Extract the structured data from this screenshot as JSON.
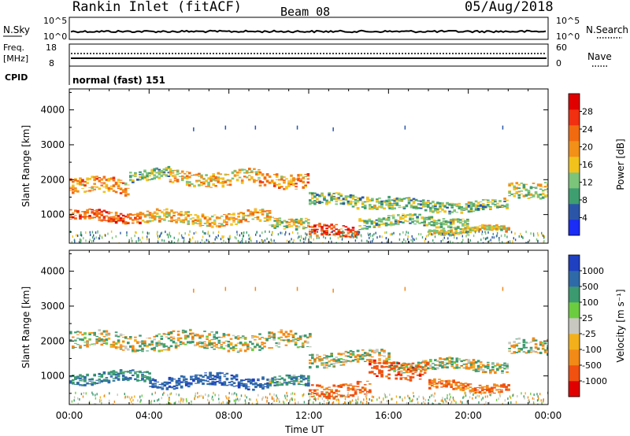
{
  "header": {
    "station": "Rankin Inlet (fitACF)",
    "beam": "Beam 08",
    "date": "05/Aug/2018"
  },
  "summary": {
    "nsky_label": "N.Sky",
    "nsky_ticks": [
      "10^5",
      "10^0"
    ],
    "nsearch_label": "N.Search",
    "nsearch_ticks": [
      "10^5",
      "10^0"
    ],
    "freq_label_1": "Freq.",
    "freq_label_2": "[MHz]",
    "freq_ticks": [
      "18",
      "8"
    ],
    "nave_label": "Nave",
    "nave_ticks": [
      "60",
      "0"
    ],
    "cpid_label": "CPID",
    "cpid_text": "normal (fast) 151"
  },
  "colors": {
    "power_scale": [
      "#1a2cf5",
      "#2b56a8",
      "#3f9e70",
      "#7cc47a",
      "#f2c21c",
      "#f29018",
      "#f26a10",
      "#f03010",
      "#e00000"
    ],
    "velocity_scale": [
      "#1f40c0",
      "#2f6aa8",
      "#3b9a70",
      "#6ccc40",
      "#c8c8c0",
      "#f4b01a",
      "#f28a18",
      "#f05010",
      "#e00000"
    ]
  },
  "chart_data": [
    {
      "type": "heatmap",
      "name": "power-panel",
      "ylabel": "Slant Range [km]",
      "yticks": [
        "4000",
        "3000",
        "2000",
        "1000"
      ],
      "ylim": [
        180,
        4600
      ],
      "xlim_hours": [
        0,
        24
      ],
      "colorbar_label": "Power [dB]",
      "colorbar_ticks": [
        "28",
        "24",
        "20",
        "16",
        "12",
        "8",
        "4"
      ],
      "colorbar_range": [
        0,
        32
      ],
      "bands": [
        {
          "t0": 0.0,
          "t1": 3.0,
          "r_center": 1800,
          "r_width": 450,
          "value": 20
        },
        {
          "t0": 3.0,
          "t1": 5.0,
          "r_center": 2150,
          "r_width": 300,
          "value": 12
        },
        {
          "t0": 5.0,
          "t1": 9.5,
          "r_center": 2050,
          "r_width": 400,
          "value": 18
        },
        {
          "t0": 9.5,
          "t1": 12.0,
          "r_center": 2000,
          "r_width": 400,
          "value": 20
        },
        {
          "t0": 12.0,
          "t1": 16.0,
          "r_center": 1400,
          "r_width": 350,
          "value": 12
        },
        {
          "t0": 16.0,
          "t1": 22.0,
          "r_center": 1250,
          "r_width": 300,
          "value": 12
        },
        {
          "t0": 22.0,
          "t1": 24.0,
          "r_center": 1750,
          "r_width": 450,
          "value": 14
        },
        {
          "t0": 0.0,
          "t1": 3.5,
          "r_center": 950,
          "r_width": 300,
          "value": 24
        },
        {
          "t0": 3.5,
          "t1": 10.0,
          "r_center": 900,
          "r_width": 350,
          "value": 18
        },
        {
          "t0": 10.0,
          "t1": 12.0,
          "r_center": 800,
          "r_width": 300,
          "value": 14
        },
        {
          "t0": 12.0,
          "t1": 14.5,
          "r_center": 500,
          "r_width": 350,
          "value": 26
        },
        {
          "t0": 14.5,
          "t1": 20.0,
          "r_center": 800,
          "r_width": 300,
          "value": 12
        },
        {
          "t0": 18.0,
          "t1": 22.0,
          "r_center": 550,
          "r_width": 150,
          "value": 16
        }
      ]
    },
    {
      "type": "heatmap",
      "name": "velocity-panel",
      "ylabel": "Slant Range [km]",
      "yticks": [
        "4000",
        "3000",
        "2000",
        "1000"
      ],
      "ylim": [
        180,
        4600
      ],
      "xlim_hours": [
        0,
        24
      ],
      "xlabel": "Time UT",
      "xticks": [
        "00:00",
        "04:00",
        "08:00",
        "12:00",
        "16:00",
        "20:00",
        "00:00"
      ],
      "colorbar_label": "Velocity [m s⁻¹]",
      "colorbar_ticks": [
        "1000",
        "500",
        "100",
        "25",
        "-25",
        "-100",
        "-500",
        "-1000"
      ],
      "bands": [
        {
          "t0": 0.0,
          "t1": 12.0,
          "r_center": 2000,
          "r_width": 500,
          "value": 0
        },
        {
          "t0": 12.0,
          "t1": 16.0,
          "r_center": 1500,
          "r_width": 400,
          "value": 0
        },
        {
          "t0": 16.0,
          "t1": 22.0,
          "r_center": 1300,
          "r_width": 300,
          "value": 0
        },
        {
          "t0": 22.0,
          "t1": 24.0,
          "r_center": 1800,
          "r_width": 450,
          "value": 0
        },
        {
          "t0": 0.0,
          "t1": 4.0,
          "r_center": 950,
          "r_width": 300,
          "value": 300
        },
        {
          "t0": 4.0,
          "t1": 10.0,
          "r_center": 850,
          "r_width": 350,
          "value": 600
        },
        {
          "t0": 10.0,
          "t1": 12.0,
          "r_center": 800,
          "r_width": 300,
          "value": 200
        },
        {
          "t0": 12.0,
          "t1": 15.0,
          "r_center": 600,
          "r_width": 400,
          "value": -400
        },
        {
          "t0": 15.0,
          "t1": 18.0,
          "r_center": 1200,
          "r_width": 500,
          "value": -500
        },
        {
          "t0": 18.0,
          "t1": 22.0,
          "r_center": 700,
          "r_width": 250,
          "value": -300
        }
      ]
    }
  ]
}
